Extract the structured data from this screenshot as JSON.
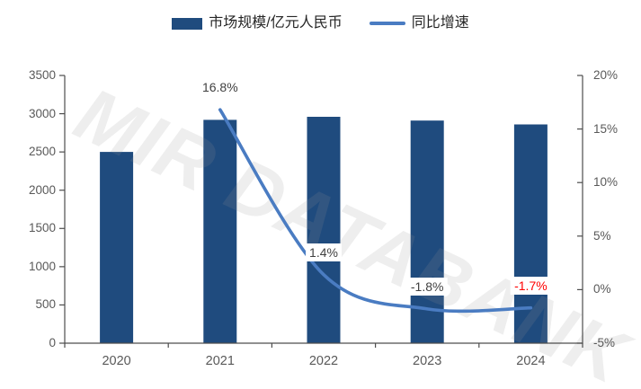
{
  "legend": {
    "items": [
      {
        "label": "市场规模/亿元人民币",
        "swatch": "bar",
        "color": "#1F4B7E"
      },
      {
        "label": "同比增速",
        "swatch": "line",
        "color": "#4A7CC2"
      }
    ]
  },
  "watermark": {
    "text": "MIR DATABANK"
  },
  "chart_data": {
    "type": "bar",
    "combo": "bar+line",
    "title": "",
    "categories": [
      "2020",
      "2021",
      "2022",
      "2023",
      "2024"
    ],
    "series": [
      {
        "name": "市场规模/亿元人民币",
        "type": "bar",
        "axis": "left",
        "color": "#1F4B7E",
        "values": [
          2500,
          2920,
          2960,
          2910,
          2860
        ]
      },
      {
        "name": "同比增速",
        "type": "line",
        "axis": "right",
        "color": "#4A7CC2",
        "values": [
          null,
          16.8,
          1.4,
          -1.8,
          -1.7
        ],
        "point_labels": [
          null,
          "16.8%",
          "1.4%",
          "-1.8%",
          "-1.7%"
        ],
        "point_label_colors": [
          null,
          "#404040",
          "#404040",
          "#404040",
          "#FF0000"
        ]
      }
    ],
    "left_axis": {
      "min": 0,
      "max": 3500,
      "step": 500,
      "tick_values": [
        0,
        500,
        1000,
        1500,
        2000,
        2500,
        3000,
        3500
      ],
      "tick_labels": [
        "0",
        "500",
        "1000",
        "1500",
        "2000",
        "2500",
        "3000",
        "3500"
      ]
    },
    "right_axis": {
      "min": -5,
      "max": 20,
      "step": 5,
      "tick_values": [
        -5,
        0,
        5,
        10,
        15,
        20
      ],
      "tick_labels": [
        "-5%",
        "0%",
        "5%",
        "10%",
        "15%",
        "20%"
      ]
    },
    "grid": false,
    "legend_position": "top-center",
    "axis_text_color": "#595959",
    "axis_line_color": "#4d4d4d"
  }
}
